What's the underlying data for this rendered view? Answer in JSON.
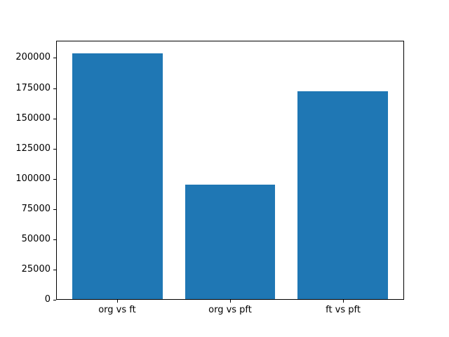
{
  "chart_data": {
    "type": "bar",
    "categories": [
      "org vs ft",
      "org vs pft",
      "ft vs pft"
    ],
    "values": [
      204000,
      95000,
      173000
    ],
    "title": "",
    "xlabel": "",
    "ylabel": "",
    "ylim": [
      0,
      214200
    ],
    "yticks": [
      0,
      25000,
      50000,
      75000,
      100000,
      125000,
      150000,
      175000,
      200000
    ],
    "bar_color": "#1f77b4",
    "grid": false,
    "legend": null
  }
}
